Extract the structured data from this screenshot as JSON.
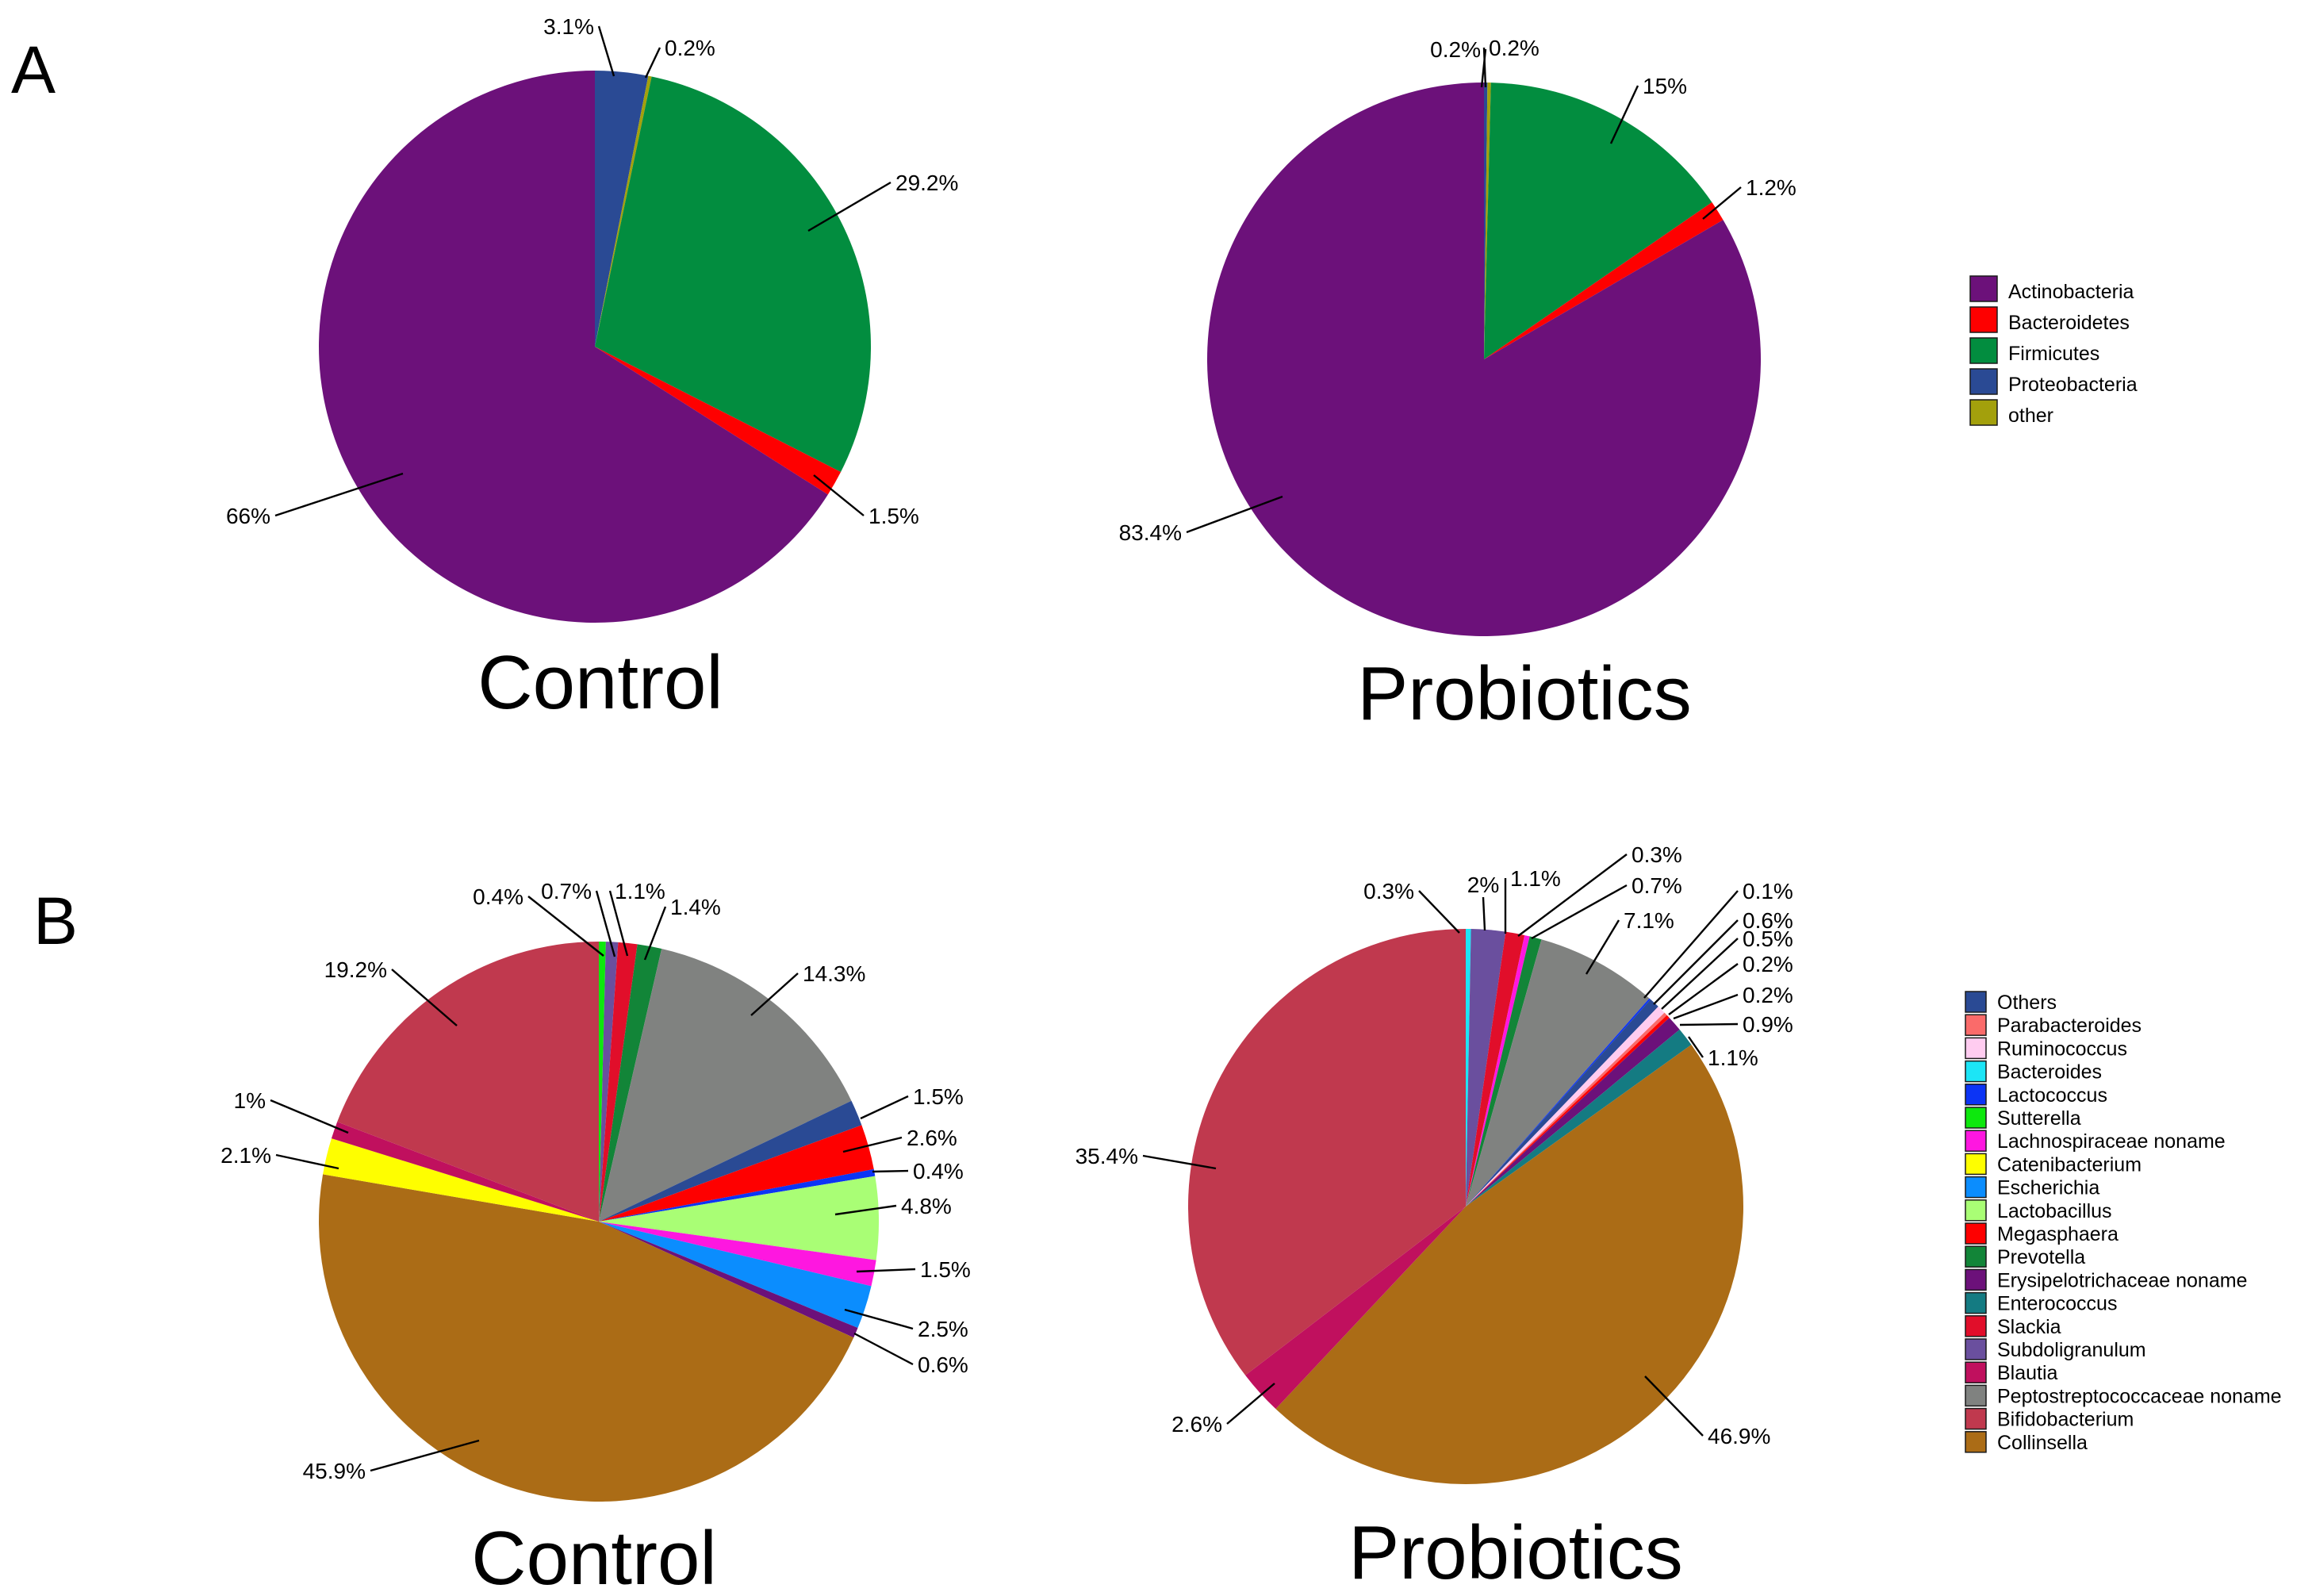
{
  "panel_labels": [
    "A",
    "B"
  ],
  "chart_data": [
    {
      "type": "pie",
      "panel": "A",
      "title": "Control",
      "slices": [
        {
          "name": "Proteobacteria",
          "value": 3.1,
          "label": "3.1%",
          "color": "#2A4A94"
        },
        {
          "name": "other",
          "value": 0.2,
          "label": "0.2%",
          "color": "#A3A00C"
        },
        {
          "name": "Firmicutes",
          "value": 29.2,
          "label": "29.2%",
          "color": "#028D3F"
        },
        {
          "name": "Bacteroidetes",
          "value": 1.5,
          "label": "1.5%",
          "color": "#FE0000"
        },
        {
          "name": "Actinobacteria",
          "value": 66,
          "label": "66%",
          "color": "#6C117A"
        }
      ]
    },
    {
      "type": "pie",
      "panel": "A",
      "title": "Probiotics",
      "slices": [
        {
          "name": "Proteobacteria",
          "value": 0.2,
          "label": "0.2%",
          "color": "#2A4A94"
        },
        {
          "name": "other",
          "value": 0.2,
          "label": "0.2%",
          "color": "#A3A00C"
        },
        {
          "name": "Firmicutes",
          "value": 15,
          "label": "15%",
          "color": "#028D3F"
        },
        {
          "name": "Bacteroidetes",
          "value": 1.2,
          "label": "1.2%",
          "color": "#FE0000"
        },
        {
          "name": "Actinobacteria",
          "value": 83.4,
          "label": "83.4%",
          "color": "#6C117A"
        }
      ]
    },
    {
      "type": "pie",
      "panel": "B",
      "title": "Control",
      "slices": [
        {
          "name": "Sutterella",
          "value": 0.4,
          "label": "0.4%",
          "color": "#0DE80D"
        },
        {
          "name": "Subdoligranulum",
          "value": 0.7,
          "label": "0.7%",
          "color": "#6A4F9E"
        },
        {
          "name": "Slackia",
          "value": 1.1,
          "label": "1.1%",
          "color": "#E10E2A"
        },
        {
          "name": "Prevotella",
          "value": 1.4,
          "label": "1.4%",
          "color": "#128538"
        },
        {
          "name": "Peptostreptococcaceae noname",
          "value": 14.3,
          "label": "14.3%",
          "color": "#808280"
        },
        {
          "name": "Others",
          "value": 1.5,
          "label": "1.5%",
          "color": "#2A4A94"
        },
        {
          "name": "Megasphaera",
          "value": 2.6,
          "label": "2.6%",
          "color": "#FE0000"
        },
        {
          "name": "Lactococcus",
          "value": 0.4,
          "label": "0.4%",
          "color": "#0C34F5"
        },
        {
          "name": "Lactobacillus",
          "value": 4.8,
          "label": "4.8%",
          "color": "#A9FE75"
        },
        {
          "name": "Lachnospiraceae noname",
          "value": 1.5,
          "label": "1.5%",
          "color": "#FE17E0"
        },
        {
          "name": "Escherichia",
          "value": 2.5,
          "label": "2.5%",
          "color": "#0B8DFE"
        },
        {
          "name": "Erysipelotrichaceae noname",
          "value": 0.6,
          "label": "0.6%",
          "color": "#6C117A"
        },
        {
          "name": "Collinsella",
          "value": 45.9,
          "label": "45.9%",
          "color": "#AB6C16"
        },
        {
          "name": "Catenibacterium",
          "value": 2.1,
          "label": "2.1%",
          "color": "#FEFE00"
        },
        {
          "name": "Blautia",
          "value": 1.0,
          "label": "1%",
          "color": "#C0105E"
        },
        {
          "name": "Bifidobacterium",
          "value": 19.2,
          "label": "19.2%",
          "color": "#C0394E"
        }
      ]
    },
    {
      "type": "pie",
      "panel": "B",
      "title": "Probiotics",
      "slices": [
        {
          "name": "Bacteroides",
          "value": 0.3,
          "label": "0.3%",
          "color": "#1CE5F6"
        },
        {
          "name": "Subdoligranulum",
          "value": 2.0,
          "label": "2%",
          "color": "#6A4F9E"
        },
        {
          "name": "Slackia",
          "value": 1.1,
          "label": "1.1%",
          "color": "#E10E2A"
        },
        {
          "name": "Lachnospiraceae noname",
          "value": 0.3,
          "label": "0.3%",
          "color": "#FE17E0"
        },
        {
          "name": "Prevotella",
          "value": 0.7,
          "label": "0.7%",
          "color": "#128538"
        },
        {
          "name": "Peptostreptococcaceae noname",
          "value": 7.1,
          "label": "7.1%",
          "color": "#808280"
        },
        {
          "name": "Lactococcus",
          "value": 0.1,
          "label": "0.1%",
          "color": "#0C34F5"
        },
        {
          "name": "Others",
          "value": 0.6,
          "label": "0.6%",
          "color": "#2A4A94"
        },
        {
          "name": "Ruminococcus",
          "value": 0.5,
          "label": "0.5%",
          "color": "#FFCCF0"
        },
        {
          "name": "Parabacteroides",
          "value": 0.2,
          "label": "0.2%",
          "color": "#FA6B6A"
        },
        {
          "name": "Megasphaera",
          "value": 0.2,
          "label": "0.2%",
          "color": "#FE0000"
        },
        {
          "name": "Erysipelotrichaceae noname",
          "value": 0.9,
          "label": "0.9%",
          "color": "#6C117A"
        },
        {
          "name": "Enterococcus",
          "value": 1.1,
          "label": "1.1%",
          "color": "#147B82"
        },
        {
          "name": "Collinsella",
          "value": 46.9,
          "label": "46.9%",
          "color": "#AB6C16"
        },
        {
          "name": "Blautia",
          "value": 2.6,
          "label": "2.6%",
          "color": "#C0105E"
        },
        {
          "name": "Bifidobacterium",
          "value": 35.4,
          "label": "35.4%",
          "color": "#C0394E"
        }
      ]
    }
  ],
  "legend_a": [
    {
      "label": "Actinobacteria",
      "color": "#6C117A"
    },
    {
      "label": "Bacteroidetes",
      "color": "#FE0000"
    },
    {
      "label": "Firmicutes",
      "color": "#028D3F"
    },
    {
      "label": "Proteobacteria",
      "color": "#2A4A94"
    },
    {
      "label": "other",
      "color": "#A3A00C"
    }
  ],
  "legend_b": [
    {
      "label": "Others",
      "color": "#2A4A94"
    },
    {
      "label": "Parabacteroides",
      "color": "#FA6B6A"
    },
    {
      "label": "Ruminococcus",
      "color": "#FFCCF0"
    },
    {
      "label": "Bacteroides",
      "color": "#1CE5F6"
    },
    {
      "label": "Lactococcus",
      "color": "#0C34F5"
    },
    {
      "label": "Sutterella",
      "color": "#0DE80D"
    },
    {
      "label": "Lachnospiraceae noname",
      "color": "#FE17E0"
    },
    {
      "label": "Catenibacterium",
      "color": "#FEFE00"
    },
    {
      "label": "Escherichia",
      "color": "#0B8DFE"
    },
    {
      "label": "Lactobacillus",
      "color": "#A9FE75"
    },
    {
      "label": "Megasphaera",
      "color": "#FE0000"
    },
    {
      "label": "Prevotella",
      "color": "#128538"
    },
    {
      "label": "Erysipelotrichaceae noname",
      "color": "#6C117A"
    },
    {
      "label": "Enterococcus",
      "color": "#147B82"
    },
    {
      "label": "Slackia",
      "color": "#E10E2A"
    },
    {
      "label": "Subdoligranulum",
      "color": "#6A4F9E"
    },
    {
      "label": "Blautia",
      "color": "#C0105E"
    },
    {
      "label": "Peptostreptococcaceae noname",
      "color": "#808280"
    },
    {
      "label": "Bifidobacterium",
      "color": "#C0394E"
    },
    {
      "label": "Collinsella",
      "color": "#AB6C16"
    }
  ]
}
